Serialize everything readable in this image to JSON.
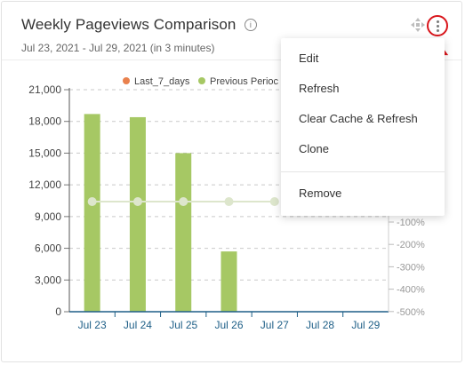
{
  "widget": {
    "title": "Weekly Pageviews Comparison",
    "info_glyph": "i",
    "date_range": "Jul 23, 2021 - Jul 29, 2021 (in 3 minutes)"
  },
  "menu": {
    "items": [
      "Edit",
      "Refresh",
      "Clear Cache & Refresh",
      "Clone"
    ],
    "remove_label": "Remove"
  },
  "colors": {
    "last7": "#e9814d",
    "previous": "#a6c864",
    "line": "#dde6cc",
    "highlight": "#d9141a"
  },
  "chart_data": {
    "type": "bar",
    "categories": [
      "Jul 23",
      "Jul 24",
      "Jul 25",
      "Jul 26",
      "Jul 27",
      "Jul 28",
      "Jul 29"
    ],
    "y_ticks": [
      "21,000",
      "18,000",
      "15,000",
      "12,000",
      "9,000",
      "6,000",
      "3,000",
      "0"
    ],
    "ylim": [
      0,
      21000
    ],
    "y2_ticks_visible": [
      "-100%",
      "-200%",
      "-300%",
      "-400%",
      "-500%"
    ],
    "y2_values_visible": [
      -100,
      -200,
      -300,
      -400,
      -500
    ],
    "legend_visible": [
      "Last_7_days",
      "Previous Perioc"
    ],
    "series": [
      {
        "name": "Last_7_days",
        "values": [
          0,
          0,
          0,
          0,
          0,
          0,
          0
        ]
      },
      {
        "name": "Previous Period",
        "values": [
          18700,
          18400,
          15000,
          5700,
          0,
          0,
          0
        ]
      }
    ],
    "change_line_visible_points": 5,
    "grid": true
  }
}
